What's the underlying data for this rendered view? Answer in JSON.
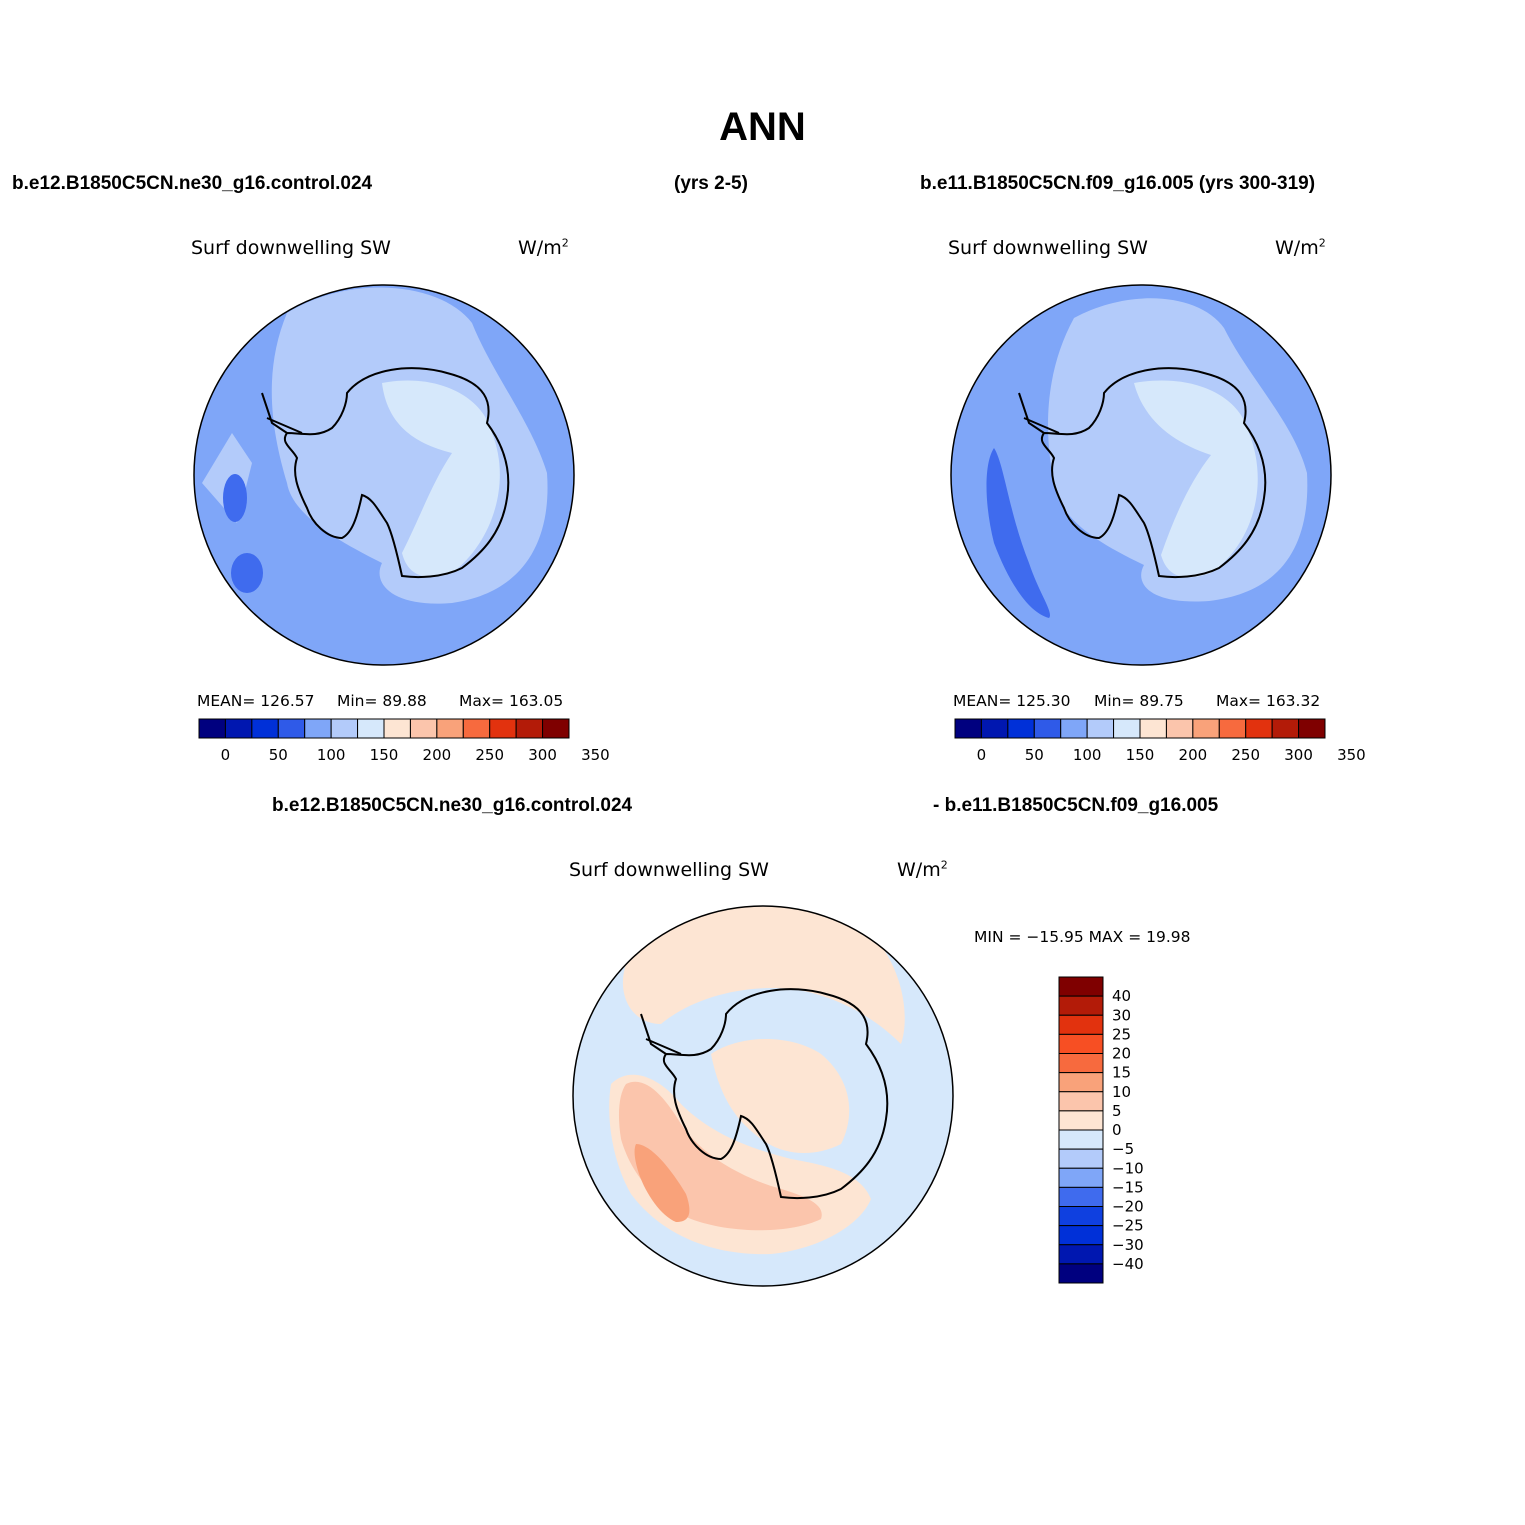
{
  "title": "ANN",
  "header": {
    "case1": "b.e12.B1850C5CN.ne30_g16.control.024",
    "years1": "(yrs 2-5)",
    "case2": "b.e11.B1850C5CN.f09_g16.005 (yrs 300-319)"
  },
  "panels": [
    {
      "variable": "Surf downwelling SW",
      "units_base": "W/m",
      "units_exp": "2",
      "stats": {
        "mean": "MEAN= 126.57",
        "min": "Min=  89.88",
        "max": "Max= 163.05"
      }
    },
    {
      "variable": "Surf downwelling SW",
      "units_base": "W/m",
      "units_exp": "2",
      "stats": {
        "mean": "MEAN= 125.30",
        "min": "Min=  89.75",
        "max": "Max= 163.32"
      }
    }
  ],
  "diff": {
    "left_label": "b.e12.B1850C5CN.ne30_g16.control.024",
    "right_label": "- b.e11.B1850C5CN.f09_g16.005",
    "variable": "Surf downwelling SW",
    "units_base": "W/m",
    "units_exp": "2",
    "minmax": "MIN = −15.95 MAX =   19.98"
  },
  "colorbar_abs": {
    "colors": [
      "#00007f",
      "#0017b0",
      "#0030d8",
      "#2f5ae8",
      "#7fa6f8",
      "#b3cbfa",
      "#d6e8fb",
      "#fde5d3",
      "#fbc5ac",
      "#f9a27a",
      "#f76a3e",
      "#e2320e",
      "#b31b08",
      "#7f0000"
    ],
    "ticks": [
      "0",
      "50",
      "100",
      "150",
      "200",
      "250",
      "300",
      "350"
    ]
  },
  "colorbar_diff": {
    "colors_top_to_bottom": [
      "#7f0000",
      "#b31b08",
      "#e2320e",
      "#f74f23",
      "#f76a3e",
      "#f9a27a",
      "#fbc5ac",
      "#fde5d3",
      "#d6e8fb",
      "#b3cbfa",
      "#7fa6f8",
      "#3f6bee",
      "#0f40e0",
      "#0030d8",
      "#0017b0",
      "#00007f"
    ],
    "labels": [
      "40",
      "30",
      "25",
      "20",
      "15",
      "10",
      "5",
      "0",
      "−5",
      "−10",
      "−15",
      "−20",
      "−25",
      "−30",
      "−40"
    ]
  }
}
